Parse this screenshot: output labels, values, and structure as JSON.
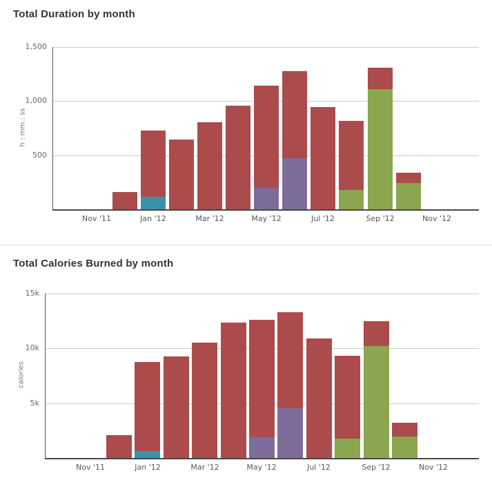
{
  "page": {
    "background": "#ffffff",
    "divider_color": "#e0e0e0"
  },
  "activity_colors": {
    "red": "#AC4B4B",
    "teal": "#3B92A8",
    "purple": "#7E6C9B",
    "green": "#8AA64F"
  },
  "axis_colors": {
    "gridline": "#cccccc",
    "axis_line": "#47484a",
    "tick_text": "#66666b"
  },
  "chart_data": [
    {
      "id": "duration",
      "type": "bar",
      "stacked": true,
      "title": "Total Duration by month",
      "xlabel": "",
      "ylabel": "h : mm : ss",
      "ylim": [
        0,
        1500
      ],
      "grid": true,
      "legend": "none",
      "ytick_values": [
        500,
        1000,
        1500
      ],
      "ytick_labels": [
        "500",
        "1,000",
        "1,500"
      ],
      "months": [
        "Nov '11",
        "Dec '11",
        "Jan '12",
        "Feb '12",
        "Mar '12",
        "Apr '12",
        "May '12",
        "Jun '12",
        "Jul '12",
        "Aug '12",
        "Sep '12",
        "Oct '12",
        "Nov '12"
      ],
      "xtick_labels": [
        "Nov '11",
        "Jan '12",
        "Mar '12",
        "May '12",
        "Jul '12",
        "Sep '12",
        "Nov '12"
      ],
      "xtick_month_index": [
        0,
        2,
        4,
        6,
        8,
        10,
        12
      ],
      "bars": [
        {
          "month": "Dec '11",
          "month_index": 1,
          "segments": [
            {
              "series": "red",
              "value": 160
            }
          ]
        },
        {
          "month": "Jan '12",
          "month_index": 2,
          "segments": [
            {
              "series": "teal",
              "value": 115
            },
            {
              "series": "red",
              "value": 610
            }
          ]
        },
        {
          "month": "Feb '12",
          "month_index": 3,
          "segments": [
            {
              "series": "red",
              "value": 645
            }
          ]
        },
        {
          "month": "Mar '12",
          "month_index": 4,
          "segments": [
            {
              "series": "red",
              "value": 805
            }
          ]
        },
        {
          "month": "Apr '12",
          "month_index": 5,
          "segments": [
            {
              "series": "red",
              "value": 960
            }
          ]
        },
        {
          "month": "May '12",
          "month_index": 6,
          "segments": [
            {
              "series": "purple",
              "value": 200
            },
            {
              "series": "red",
              "value": 945
            }
          ]
        },
        {
          "month": "Jun '12",
          "month_index": 7,
          "segments": [
            {
              "series": "purple",
              "value": 470
            },
            {
              "series": "red",
              "value": 805
            }
          ]
        },
        {
          "month": "Jul '12",
          "month_index": 8,
          "segments": [
            {
              "series": "red",
              "value": 945
            }
          ]
        },
        {
          "month": "Aug '12",
          "month_index": 9,
          "segments": [
            {
              "series": "green",
              "value": 180
            },
            {
              "series": "red",
              "value": 640
            }
          ]
        },
        {
          "month": "Sep '12",
          "month_index": 10,
          "segments": [
            {
              "series": "green",
              "value": 1110
            },
            {
              "series": "red",
              "value": 200
            }
          ]
        },
        {
          "month": "Oct '12",
          "month_index": 11,
          "segments": [
            {
              "series": "green",
              "value": 240
            },
            {
              "series": "red",
              "value": 95
            }
          ]
        }
      ]
    },
    {
      "id": "calories",
      "type": "bar",
      "stacked": true,
      "title": "Total Calories Burned by month",
      "xlabel": "",
      "ylabel": "calories",
      "ylim": [
        0,
        15000
      ],
      "grid": true,
      "legend": "none",
      "ytick_values": [
        5000,
        10000,
        15000
      ],
      "ytick_labels": [
        "5k",
        "10k",
        "15k"
      ],
      "months": [
        "Nov '11",
        "Dec '11",
        "Jan '12",
        "Feb '12",
        "Mar '12",
        "Apr '12",
        "May '12",
        "Jun '12",
        "Jul '12",
        "Aug '12",
        "Sep '12",
        "Oct '12",
        "Nov '12"
      ],
      "xtick_labels": [
        "Nov '11",
        "Jan '12",
        "Mar '12",
        "May '12",
        "Jul '12",
        "Sep '12",
        "Nov '12"
      ],
      "xtick_month_index": [
        0,
        2,
        4,
        6,
        8,
        10,
        12
      ],
      "bars": [
        {
          "month": "Dec '11",
          "month_index": 1,
          "segments": [
            {
              "series": "red",
              "value": 2100
            }
          ]
        },
        {
          "month": "Jan '12",
          "month_index": 2,
          "segments": [
            {
              "series": "teal",
              "value": 600
            },
            {
              "series": "red",
              "value": 8100
            }
          ]
        },
        {
          "month": "Feb '12",
          "month_index": 3,
          "segments": [
            {
              "series": "red",
              "value": 9250
            }
          ]
        },
        {
          "month": "Mar '12",
          "month_index": 4,
          "segments": [
            {
              "series": "red",
              "value": 10500
            }
          ]
        },
        {
          "month": "Apr '12",
          "month_index": 5,
          "segments": [
            {
              "series": "red",
              "value": 12350
            }
          ]
        },
        {
          "month": "May '12",
          "month_index": 6,
          "segments": [
            {
              "series": "purple",
              "value": 1900
            },
            {
              "series": "red",
              "value": 10700
            }
          ]
        },
        {
          "month": "Jun '12",
          "month_index": 7,
          "segments": [
            {
              "series": "purple",
              "value": 4550
            },
            {
              "series": "red",
              "value": 8750
            }
          ]
        },
        {
          "month": "Jul '12",
          "month_index": 8,
          "segments": [
            {
              "series": "red",
              "value": 10900
            }
          ]
        },
        {
          "month": "Aug '12",
          "month_index": 9,
          "segments": [
            {
              "series": "green",
              "value": 1750
            },
            {
              "series": "red",
              "value": 7550
            }
          ]
        },
        {
          "month": "Sep '12",
          "month_index": 10,
          "segments": [
            {
              "series": "green",
              "value": 10200
            },
            {
              "series": "red",
              "value": 2300
            }
          ]
        },
        {
          "month": "Oct '12",
          "month_index": 11,
          "segments": [
            {
              "series": "green",
              "value": 1950
            },
            {
              "series": "red",
              "value": 1250
            }
          ]
        }
      ]
    }
  ]
}
